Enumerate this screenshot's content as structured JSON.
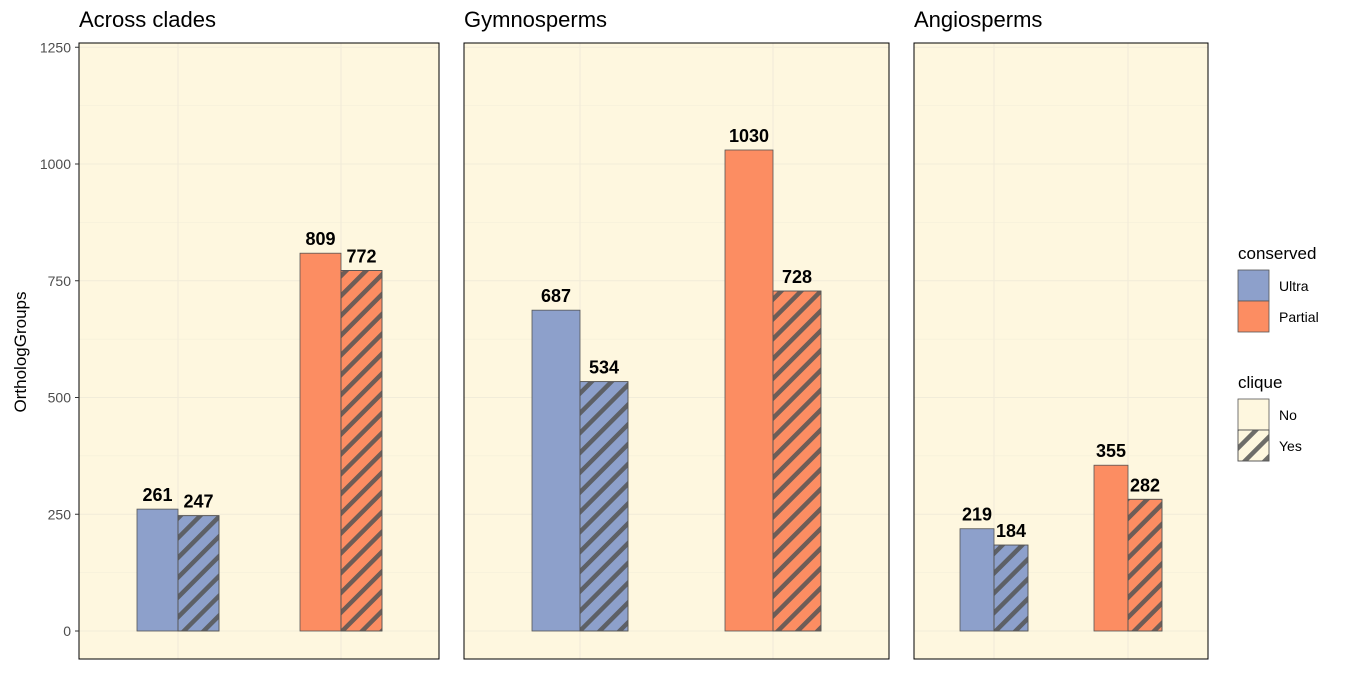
{
  "chart_data": {
    "type": "bar",
    "ylabel": "OrthologGroups",
    "ylim": [
      -60,
      1255
    ],
    "yticks": [
      0,
      250,
      500,
      750,
      1000,
      1250
    ],
    "grid": true,
    "legend_placement": "right",
    "colors": {
      "Ultra": "#8da0cb",
      "Partial": "#fc8d62",
      "panel_bg": "#fef7df",
      "grid": "#f1ecd9",
      "hatch": "#555555"
    },
    "panels": [
      {
        "title": "Across clades",
        "bars": [
          {
            "conserved": "Ultra",
            "clique": "No",
            "value": 261
          },
          {
            "conserved": "Ultra",
            "clique": "Yes",
            "value": 247
          },
          {
            "conserved": "Partial",
            "clique": "No",
            "value": 809
          },
          {
            "conserved": "Partial",
            "clique": "Yes",
            "value": 772
          }
        ]
      },
      {
        "title": "Gymnosperms",
        "bars": [
          {
            "conserved": "Ultra",
            "clique": "No",
            "value": 687
          },
          {
            "conserved": "Ultra",
            "clique": "Yes",
            "value": 534
          },
          {
            "conserved": "Partial",
            "clique": "No",
            "value": 1030
          },
          {
            "conserved": "Partial",
            "clique": "Yes",
            "value": 728
          }
        ]
      },
      {
        "title": "Angiosperms",
        "bars": [
          {
            "conserved": "Ultra",
            "clique": "No",
            "value": 219
          },
          {
            "conserved": "Ultra",
            "clique": "Yes",
            "value": 184
          },
          {
            "conserved": "Partial",
            "clique": "No",
            "value": 355
          },
          {
            "conserved": "Partial",
            "clique": "Yes",
            "value": 282
          }
        ]
      }
    ],
    "legend": {
      "conserved": {
        "title": "conserved",
        "items": [
          "Ultra",
          "Partial"
        ]
      },
      "clique": {
        "title": "clique",
        "items": [
          "No",
          "Yes"
        ]
      }
    }
  }
}
